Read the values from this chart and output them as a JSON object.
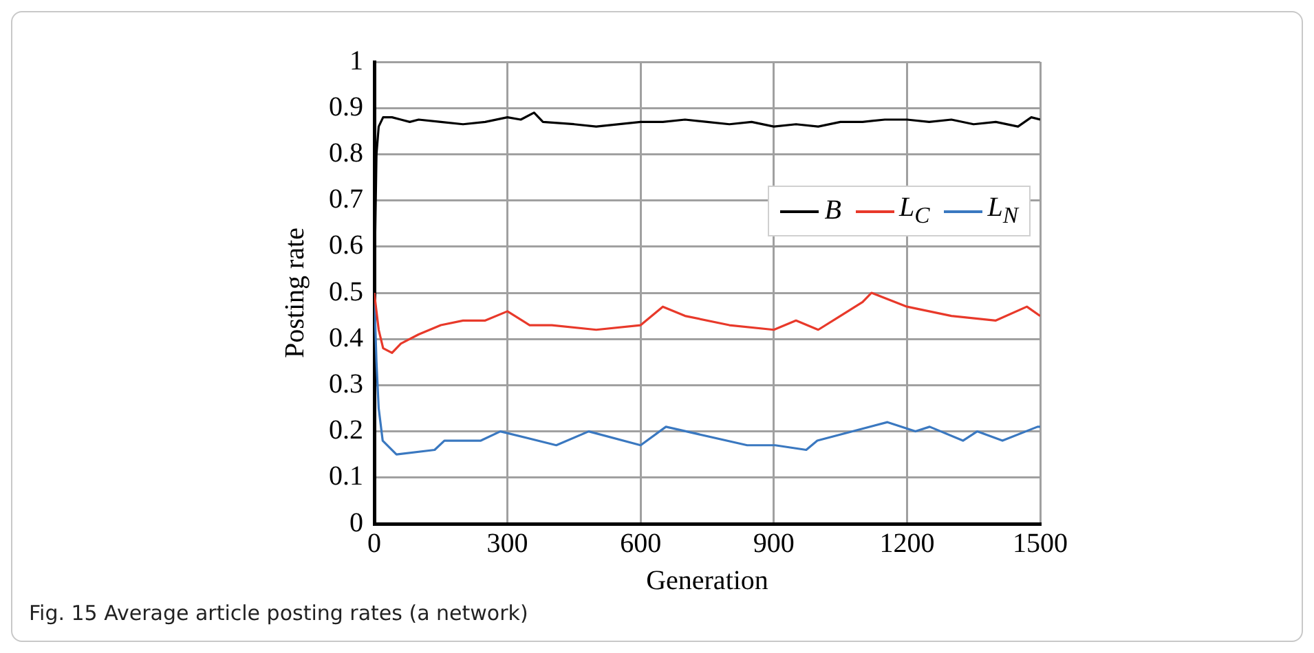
{
  "chart_data": {
    "type": "line",
    "xlabel": "Generation",
    "ylabel": "Posting rate",
    "xlim": [
      0,
      1500
    ],
    "xticks": [
      0,
      300,
      600,
      900,
      1200,
      1500
    ],
    "ylim": [
      0,
      1
    ],
    "yticks": [
      0,
      0.1,
      0.2,
      0.3,
      0.4,
      0.5,
      0.6,
      0.7,
      0.8,
      0.9,
      1
    ],
    "grid": true,
    "legend": "right",
    "marker": "none",
    "line_style": "solid",
    "annotations": [
      "Fig. 15 Average article posting rates (a network)"
    ],
    "series": [
      {
        "name": "B",
        "color": "#000000",
        "x": [
          0,
          5,
          10,
          20,
          40,
          60,
          80,
          100,
          150,
          200,
          250,
          300,
          330,
          360,
          380,
          450,
          500,
          600,
          650,
          700,
          750,
          800,
          850,
          900,
          950,
          1000,
          1050,
          1100,
          1150,
          1200,
          1250,
          1300,
          1350,
          1400,
          1450,
          1480,
          1500
        ],
        "values": [
          0.5,
          0.8,
          0.86,
          0.88,
          0.88,
          0.875,
          0.87,
          0.875,
          0.87,
          0.865,
          0.87,
          0.88,
          0.875,
          0.89,
          0.87,
          0.865,
          0.86,
          0.87,
          0.87,
          0.875,
          0.87,
          0.865,
          0.87,
          0.86,
          0.865,
          0.86,
          0.87,
          0.87,
          0.875,
          0.875,
          0.87,
          0.875,
          0.865,
          0.87,
          0.86,
          0.88,
          0.875
        ]
      },
      {
        "name": "L$_{C}$",
        "color": "#e8392a",
        "x": [
          0,
          10,
          20,
          40,
          60,
          100,
          150,
          200,
          250,
          300,
          350,
          400,
          500,
          600,
          650,
          700,
          800,
          900,
          950,
          1000,
          1050,
          1100,
          1120,
          1200,
          1300,
          1400,
          1470,
          1500
        ],
        "values": [
          0.5,
          0.42,
          0.38,
          0.37,
          0.39,
          0.41,
          0.43,
          0.44,
          0.44,
          0.46,
          0.43,
          0.43,
          0.42,
          0.43,
          0.47,
          0.45,
          0.43,
          0.42,
          0.44,
          0.42,
          0.45,
          0.48,
          0.5,
          0.47,
          0.45,
          0.44,
          0.47,
          0.45
        ]
      },
      {
        "name": "L$_{N}$",
        "color": "#3a78c0",
        "x": [
          0,
          5,
          10,
          19,
          50,
          136,
          158,
          240,
          284,
          410,
          483,
          600,
          657,
          840,
          903,
          973,
          998,
          1156,
          1219,
          1251,
          1326,
          1358,
          1415,
          1494,
          1500
        ],
        "values": [
          0.5,
          0.35,
          0.25,
          0.18,
          0.15,
          0.16,
          0.18,
          0.18,
          0.2,
          0.17,
          0.2,
          0.17,
          0.21,
          0.17,
          0.17,
          0.16,
          0.18,
          0.22,
          0.2,
          0.21,
          0.18,
          0.2,
          0.18,
          0.21,
          0.21
        ]
      }
    ]
  }
}
